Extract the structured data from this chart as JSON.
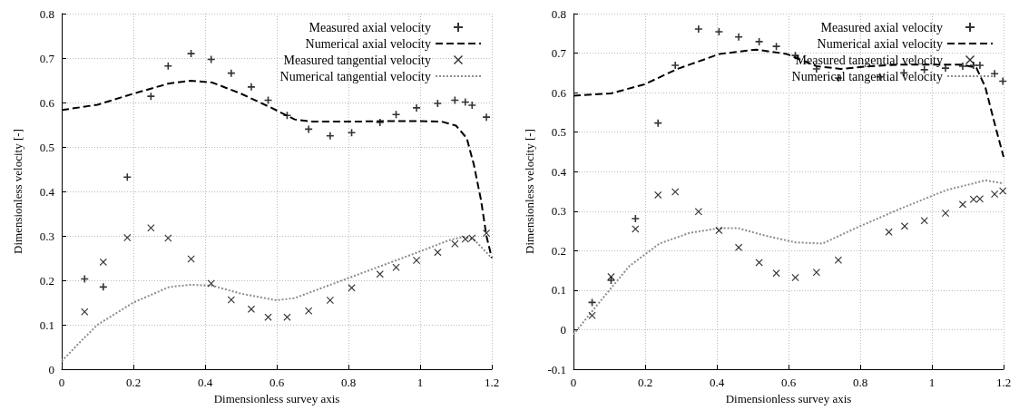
{
  "chart_data": [
    {
      "type": "scatter",
      "xlabel": "Dimensionless survey axis",
      "ylabel": "Dimensionless velocity [-]",
      "xlim": [
        0,
        1.2
      ],
      "xticks": [
        0,
        0.2,
        0.4,
        0.6,
        0.8,
        1,
        1.2
      ],
      "ylim": [
        0,
        0.8
      ],
      "yticks": [
        0,
        0.1,
        0.2,
        0.3,
        0.4,
        0.5,
        0.6,
        0.7,
        0.8
      ],
      "grid": true,
      "legend": "top right",
      "series": [
        {
          "name": "Measured axial velocity",
          "marker": "cross",
          "color": "#000000",
          "x": [
            0.064,
            0.116,
            0.183,
            0.249,
            0.297,
            0.361,
            0.417,
            0.473,
            0.529,
            0.576,
            0.629,
            0.689,
            0.749,
            0.809,
            0.888,
            0.933,
            0.99,
            1.049,
            1.097,
            1.126,
            1.145,
            1.185
          ],
          "values": [
            0.203,
            0.185,
            0.432,
            0.614,
            0.682,
            0.71,
            0.697,
            0.666,
            0.635,
            0.605,
            0.571,
            0.54,
            0.525,
            0.532,
            0.555,
            0.573,
            0.588,
            0.598,
            0.605,
            0.601,
            0.594,
            0.567
          ]
        },
        {
          "name": "Numerical axial velocity",
          "type": "line",
          "line_style": "dashed",
          "color": "#000000",
          "x": [
            0,
            0.1,
            0.2,
            0.3,
            0.36,
            0.42,
            0.5,
            0.58,
            0.65,
            0.7,
            0.8,
            0.9,
            1.0,
            1.06,
            1.1,
            1.13,
            1.15,
            1.17,
            1.185,
            1.2
          ],
          "values": [
            0.583,
            0.595,
            0.62,
            0.643,
            0.649,
            0.645,
            0.62,
            0.59,
            0.562,
            0.557,
            0.557,
            0.558,
            0.558,
            0.557,
            0.548,
            0.52,
            0.46,
            0.38,
            0.3,
            0.25
          ]
        },
        {
          "name": "Measured tangential velocity",
          "marker": "x",
          "color": "#000000",
          "x": [
            0.064,
            0.116,
            0.183,
            0.249,
            0.297,
            0.361,
            0.417,
            0.473,
            0.529,
            0.576,
            0.629,
            0.689,
            0.749,
            0.809,
            0.888,
            0.933,
            0.99,
            1.049,
            1.097,
            1.126,
            1.145,
            1.185
          ],
          "values": [
            0.129,
            0.241,
            0.296,
            0.318,
            0.295,
            0.248,
            0.193,
            0.156,
            0.135,
            0.117,
            0.117,
            0.131,
            0.155,
            0.183,
            0.214,
            0.229,
            0.245,
            0.263,
            0.282,
            0.293,
            0.295,
            0.306
          ]
        },
        {
          "name": "Numerical tangential velocity",
          "type": "line",
          "line_style": "dotted",
          "color": "#8c8c8c",
          "x": [
            0,
            0.05,
            0.1,
            0.2,
            0.3,
            0.36,
            0.42,
            0.5,
            0.6,
            0.65,
            0.7,
            0.8,
            0.9,
            1.0,
            1.08,
            1.12,
            1.15,
            1.2
          ],
          "values": [
            0.018,
            0.06,
            0.1,
            0.15,
            0.185,
            0.19,
            0.188,
            0.17,
            0.155,
            0.16,
            0.175,
            0.205,
            0.235,
            0.265,
            0.29,
            0.298,
            0.292,
            0.25
          ]
        }
      ]
    },
    {
      "type": "scatter",
      "xlabel": "Dimensionless survey axis",
      "ylabel": "Dimensionless velocity [-]",
      "xlim": [
        0,
        1.2
      ],
      "xticks": [
        0,
        0.2,
        0.4,
        0.6,
        0.8,
        1,
        1.2
      ],
      "ylim": [
        -0.1,
        0.8
      ],
      "yticks": [
        -0.1,
        0,
        0.1,
        0.2,
        0.3,
        0.4,
        0.5,
        0.6,
        0.7,
        0.8
      ],
      "grid": true,
      "legend": "top right",
      "series": [
        {
          "name": "Measured axial velocity",
          "marker": "cross",
          "color": "#000000",
          "x": [
            0.052,
            0.105,
            0.173,
            0.236,
            0.284,
            0.349,
            0.406,
            0.461,
            0.518,
            0.566,
            0.619,
            0.678,
            0.739,
            0.855,
            0.922,
            0.979,
            1.038,
            1.086,
            1.116,
            1.134,
            1.175,
            1.198
          ],
          "values": [
            0.069,
            0.125,
            0.281,
            0.523,
            0.669,
            0.761,
            0.754,
            0.741,
            0.729,
            0.717,
            0.694,
            0.66,
            0.637,
            0.64,
            0.65,
            0.658,
            0.662,
            0.667,
            0.669,
            0.669,
            0.648,
            0.629
          ]
        },
        {
          "name": "Numerical axial velocity",
          "type": "line",
          "line_style": "dashed",
          "color": "#000000",
          "x": [
            0,
            0.105,
            0.198,
            0.29,
            0.408,
            0.51,
            0.594,
            0.678,
            0.745,
            0.83,
            0.914,
            1.0,
            1.082,
            1.124,
            1.149,
            1.175,
            1.2
          ],
          "values": [
            0.592,
            0.598,
            0.621,
            0.66,
            0.698,
            0.709,
            0.698,
            0.667,
            0.66,
            0.667,
            0.671,
            0.671,
            0.671,
            0.663,
            0.614,
            0.522,
            0.437
          ]
        },
        {
          "name": "Measured tangential velocity",
          "marker": "x",
          "color": "#000000",
          "x": [
            0.052,
            0.105,
            0.173,
            0.236,
            0.284,
            0.349,
            0.406,
            0.461,
            0.518,
            0.566,
            0.619,
            0.678,
            0.739,
            0.88,
            0.924,
            0.979,
            1.038,
            1.086,
            1.116,
            1.134,
            1.175,
            1.198
          ],
          "values": [
            0.036,
            0.134,
            0.255,
            0.341,
            0.349,
            0.299,
            0.251,
            0.208,
            0.17,
            0.143,
            0.132,
            0.145,
            0.176,
            0.247,
            0.262,
            0.276,
            0.295,
            0.317,
            0.33,
            0.331,
            0.343,
            0.351
          ]
        },
        {
          "name": "Numerical tangential velocity",
          "type": "line",
          "line_style": "dotted",
          "color": "#8c8c8c",
          "x": [
            0,
            0.072,
            0.156,
            0.24,
            0.324,
            0.408,
            0.459,
            0.535,
            0.619,
            0.695,
            0.787,
            0.914,
            1.04,
            1.149,
            1.2
          ],
          "values": [
            -0.012,
            0.069,
            0.161,
            0.218,
            0.245,
            0.257,
            0.257,
            0.238,
            0.221,
            0.218,
            0.257,
            0.307,
            0.353,
            0.378,
            0.37
          ]
        }
      ]
    }
  ]
}
